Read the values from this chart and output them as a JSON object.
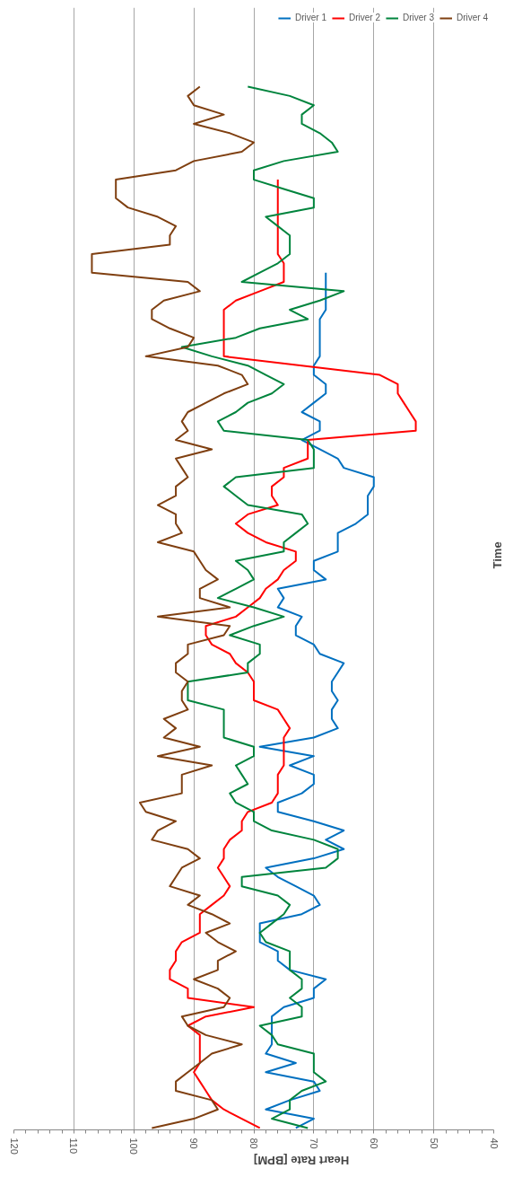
{
  "chart_data": {
    "type": "line",
    "orientation": "horizontal",
    "xlabel": "Heart Rate [BPM]",
    "ylabel": "Time",
    "categories": [
      null,
      null,
      null,
      null,
      null,
      null,
      null,
      null,
      null,
      null,
      null,
      null,
      null,
      null,
      null,
      null,
      null,
      null,
      null,
      null,
      null,
      null,
      null,
      null,
      null,
      null,
      null,
      null,
      null,
      null,
      null,
      null,
      null,
      null,
      null,
      null,
      null,
      null,
      null,
      null,
      null,
      null,
      null,
      null,
      null,
      null,
      null,
      null,
      null,
      null,
      null,
      null,
      null,
      null,
      null,
      null,
      null,
      null,
      null,
      null,
      null,
      null,
      null,
      null,
      null,
      null,
      null,
      null,
      null,
      null,
      null,
      null,
      null,
      null,
      null,
      null,
      null,
      null,
      null,
      null,
      null,
      null,
      null,
      null,
      null,
      null,
      null,
      null,
      null,
      null,
      null,
      null,
      null,
      null,
      null,
      null,
      null,
      null,
      null,
      null,
      null,
      null,
      null,
      null,
      null,
      null,
      null,
      null,
      null,
      null,
      null,
      null,
      null
    ],
    "xlim": [
      120,
      40
    ],
    "xticks": [
      120,
      {
        "value": 118,
        "label": null
      },
      {
        "value": 116,
        "label": null
      },
      {
        "value": 114,
        "label": null
      },
      {
        "value": 112,
        "label": null
      },
      110,
      {
        "value": 108,
        "label": null
      },
      {
        "value": 106,
        "label": null
      },
      {
        "value": 104,
        "label": null
      },
      {
        "value": 102,
        "label": null
      },
      100,
      {
        "value": 98,
        "label": null
      },
      {
        "value": 96,
        "label": null
      },
      {
        "value": 94,
        "label": null
      },
      {
        "value": 92,
        "label": null
      },
      90,
      {
        "value": 88,
        "label": null
      },
      {
        "value": 86,
        "label": null
      },
      {
        "value": 84,
        "label": null
      },
      {
        "value": 82,
        "label": null
      },
      80,
      {
        "value": 78,
        "label": null
      },
      {
        "value": 76,
        "label": null
      },
      {
        "value": 74,
        "label": null
      },
      {
        "value": 72,
        "label": null
      },
      70,
      {
        "value": 68,
        "label": null
      },
      {
        "value": 66,
        "label": null
      },
      {
        "value": 64,
        "label": null
      },
      {
        "value": 62,
        "label": null
      },
      60,
      {
        "value": 58,
        "label": null
      },
      {
        "value": 56,
        "label": null
      },
      {
        "value": 54,
        "label": null
      },
      {
        "value": 52,
        "label": null
      },
      50,
      {
        "value": 48,
        "label": null
      },
      {
        "value": 46,
        "label": null
      },
      {
        "value": 44,
        "label": null
      },
      {
        "value": 42,
        "label": null
      },
      40
    ],
    "grid": "x",
    "legend": "top right",
    "line_style": "solid",
    "marker": "none",
    "series": [
      {
        "name": "Driver 1",
        "color": "#0070c0",
        "values": [
          null,
          null,
          null,
          null,
          null,
          null,
          null,
          null,
          null,
          null,
          null,
          null,
          null,
          null,
          null,
          null,
          null,
          null,
          null,
          null,
          68,
          68,
          68,
          68,
          68,
          69,
          69,
          69,
          69,
          69,
          70,
          70,
          68,
          68,
          70,
          72,
          69,
          69,
          72,
          69,
          66,
          65,
          60,
          60,
          61,
          61,
          61,
          63,
          66,
          66,
          66,
          70,
          70,
          68,
          76,
          75,
          76,
          72,
          73,
          73,
          70,
          69,
          65,
          66,
          67,
          67,
          66,
          67,
          67,
          66,
          70,
          79,
          70,
          74,
          70,
          70,
          72,
          76,
          76,
          70,
          65,
          68,
          65,
          70,
          78,
          76,
          73,
          70,
          69,
          72,
          79,
          79,
          79,
          76,
          76,
          74,
          68,
          70,
          70,
          75,
          77,
          77,
          77,
          77,
          78,
          73,
          78,
          70,
          69,
          74,
          78,
          70,
          73
        ]
      },
      {
        "name": "Driver 2",
        "color": "#ff0000",
        "values": [
          null,
          null,
          null,
          null,
          null,
          null,
          null,
          null,
          null,
          null,
          76,
          76,
          76,
          76,
          76,
          76,
          76,
          76,
          76,
          75,
          75,
          75,
          79,
          83,
          85,
          85,
          85,
          85,
          85,
          85,
          72,
          59,
          56,
          56,
          55,
          54,
          53,
          53,
          71,
          71,
          71,
          75,
          75,
          77,
          77,
          76,
          81,
          83,
          81,
          78,
          73,
          73,
          75,
          76,
          78,
          79,
          81,
          83,
          88,
          88,
          87,
          84,
          83,
          81,
          80,
          80,
          80,
          76,
          75,
          74,
          75,
          75,
          75,
          75,
          76,
          76,
          76,
          77,
          81,
          82,
          82,
          84,
          85,
          85,
          86,
          85,
          84,
          85,
          87,
          89,
          89,
          89,
          92,
          93,
          93,
          94,
          94,
          91,
          91,
          80,
          88,
          91,
          89,
          89,
          89,
          89,
          90,
          89,
          88,
          87,
          85,
          82,
          79
        ]
      },
      {
        "name": "Driver 3",
        "color": "#00843d",
        "values": [
          81,
          74,
          70,
          72,
          72,
          69,
          67,
          66,
          75,
          80,
          80,
          75,
          70,
          70,
          78,
          76,
          74,
          74,
          74,
          76,
          79,
          82,
          65,
          69,
          74,
          71,
          79,
          83,
          92,
          87,
          81,
          78,
          75,
          77,
          81,
          83,
          86,
          85,
          71,
          70,
          70,
          70,
          83,
          85,
          83,
          81,
          72,
          71,
          73,
          75,
          75,
          83,
          81,
          80,
          83,
          86,
          80,
          75,
          80,
          84,
          79,
          79,
          81,
          81,
          91,
          91,
          91,
          85,
          85,
          85,
          85,
          80,
          80,
          83,
          82,
          81,
          84,
          83,
          80,
          80,
          77,
          70,
          66,
          66,
          68,
          82,
          82,
          76,
          74,
          75,
          77,
          79,
          78,
          74,
          74,
          74,
          72,
          72,
          74,
          72,
          72,
          79,
          77,
          76,
          70,
          70,
          70,
          68,
          72,
          74,
          74,
          77,
          71
        ]
      },
      {
        "name": "Driver 4",
        "color": "#7f3f10",
        "values": [
          89,
          91,
          90,
          85,
          90,
          84,
          80,
          82,
          90,
          93,
          103,
          103,
          103,
          101,
          96,
          93,
          94,
          94,
          107,
          107,
          107,
          91,
          89,
          95,
          97,
          97,
          94,
          90,
          91,
          98,
          86,
          82,
          81,
          85,
          88,
          91,
          92,
          91,
          93,
          87,
          93,
          92,
          91,
          93,
          93,
          96,
          93,
          93,
          92,
          96,
          90,
          89,
          88,
          86,
          89,
          89,
          84,
          96,
          84,
          85,
          91,
          91,
          93,
          93,
          91,
          92,
          92,
          91,
          95,
          93,
          95,
          89,
          96,
          87,
          92,
          92,
          92,
          99,
          98,
          93,
          96,
          97,
          91,
          89,
          92,
          93,
          94,
          89,
          91,
          87,
          84,
          88,
          86,
          83,
          86,
          86,
          90,
          86,
          84,
          85,
          92,
          91,
          88,
          82,
          87,
          89,
          91,
          93,
          93,
          87,
          86,
          90,
          97
        ]
      }
    ]
  }
}
